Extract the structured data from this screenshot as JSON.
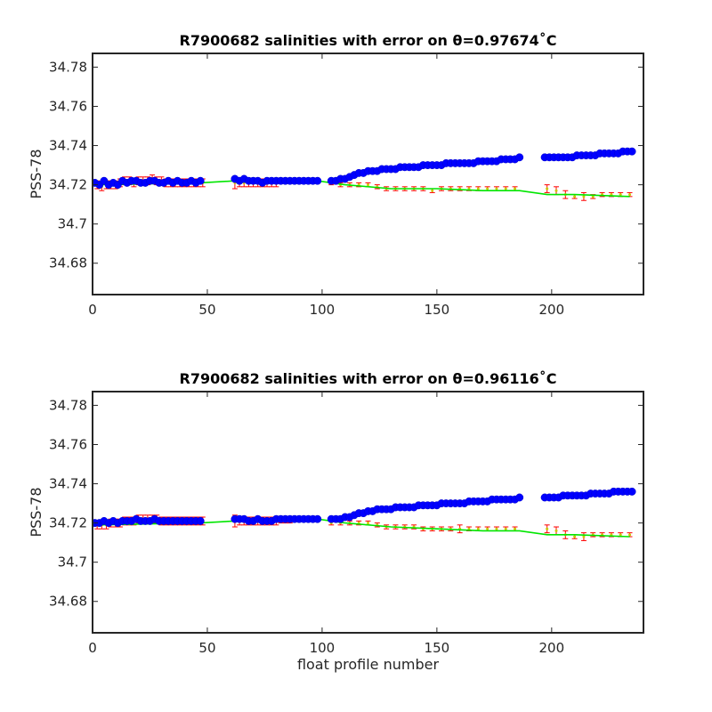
{
  "chart_data": [
    {
      "type": "scatter",
      "title": "R7900682 salinities with error on θ=0.97674˚C",
      "xlabel": "",
      "ylabel": "PSS-78",
      "xlim": [
        0,
        240
      ],
      "ylim": [
        34.664,
        34.787
      ],
      "x_ticks": [
        0,
        50,
        100,
        150,
        200
      ],
      "x_tick_labels": [
        "0",
        "50",
        "100",
        "150",
        "200"
      ],
      "y_ticks": [
        34.68,
        34.7,
        34.72,
        34.74,
        34.76,
        34.78
      ],
      "y_tick_labels": [
        "34.68",
        "34.7",
        "34.72",
        "34.74",
        "34.76",
        "34.78"
      ],
      "grid": false,
      "colors": {
        "float": "#0000ff",
        "mapped": "#ff0000",
        "fit": "#00e600",
        "errorbar": "#ff0000"
      },
      "series": [
        {
          "kind": "points",
          "color": "#0000ff",
          "x": [
            1,
            3,
            5,
            7,
            9,
            11,
            13,
            15,
            17,
            19,
            21,
            23,
            25,
            27,
            29,
            31,
            33,
            35,
            37,
            39,
            41,
            43,
            45,
            47,
            62,
            64,
            66,
            68,
            70,
            72,
            74,
            76,
            78,
            80,
            82,
            84,
            86,
            88,
            90,
            92,
            94,
            96,
            98,
            104,
            106,
            108,
            110,
            112,
            114,
            116,
            118,
            120,
            122,
            124,
            126,
            128,
            130,
            132,
            134,
            136,
            138,
            140,
            142,
            144,
            146,
            148,
            150,
            152,
            154,
            156,
            158,
            160,
            162,
            164,
            166,
            168,
            170,
            172,
            174,
            176,
            178,
            180,
            182,
            184,
            186,
            197,
            199,
            201,
            203,
            205,
            207,
            209,
            211,
            213,
            215,
            217,
            219,
            221,
            223,
            225,
            227,
            229,
            231,
            233,
            235
          ],
          "y": [
            34.721,
            34.72,
            34.722,
            34.72,
            34.721,
            34.72,
            34.722,
            34.721,
            34.722,
            34.722,
            34.721,
            34.721,
            34.722,
            34.722,
            34.721,
            34.721,
            34.722,
            34.721,
            34.722,
            34.721,
            34.721,
            34.722,
            34.721,
            34.722,
            34.723,
            34.722,
            34.723,
            34.722,
            34.722,
            34.722,
            34.721,
            34.722,
            34.722,
            34.722,
            34.722,
            34.722,
            34.722,
            34.722,
            34.722,
            34.722,
            34.722,
            34.722,
            34.722,
            34.722,
            34.722,
            34.723,
            34.723,
            34.724,
            34.725,
            34.726,
            34.726,
            34.727,
            34.727,
            34.727,
            34.728,
            34.728,
            34.728,
            34.728,
            34.729,
            34.729,
            34.729,
            34.729,
            34.729,
            34.73,
            34.73,
            34.73,
            34.73,
            34.73,
            34.731,
            34.731,
            34.731,
            34.731,
            34.731,
            34.731,
            34.731,
            34.732,
            34.732,
            34.732,
            34.732,
            34.732,
            34.733,
            34.733,
            34.733,
            34.733,
            34.734,
            34.734,
            34.734,
            34.734,
            34.734,
            34.734,
            34.734,
            34.734,
            34.735,
            34.735,
            34.735,
            34.735,
            34.735,
            34.736,
            34.736,
            34.736,
            34.736,
            34.736,
            34.737,
            34.737,
            34.737
          ]
        },
        {
          "kind": "errorbars",
          "color": "#ff0000",
          "x": [
            2,
            4,
            6,
            8,
            10,
            12,
            14,
            16,
            18,
            20,
            22,
            24,
            26,
            28,
            30,
            32,
            34,
            36,
            38,
            40,
            42,
            44,
            46,
            48,
            62,
            64,
            66,
            68,
            70,
            72,
            74,
            76,
            78,
            80,
            82,
            84,
            86,
            88,
            90,
            92,
            94,
            96,
            98,
            104,
            108,
            112,
            116,
            120,
            124,
            128,
            132,
            136,
            140,
            144,
            148,
            152,
            156,
            160,
            164,
            168,
            172,
            176,
            180,
            184,
            198,
            202,
            206,
            210,
            214,
            218,
            222,
            226,
            230,
            234
          ],
          "y": [
            34.72,
            34.719,
            34.72,
            34.72,
            34.72,
            34.721,
            34.722,
            34.722,
            34.721,
            34.722,
            34.722,
            34.722,
            34.723,
            34.722,
            34.722,
            34.721,
            34.721,
            34.721,
            34.721,
            34.721,
            34.721,
            34.721,
            34.721,
            34.721,
            34.721,
            34.721,
            34.721,
            34.721,
            34.721,
            34.721,
            34.721,
            34.721,
            34.721,
            34.721,
            34.722,
            34.722,
            34.722,
            34.722,
            34.722,
            34.722,
            34.722,
            34.722,
            34.722,
            34.721,
            34.72,
            34.72,
            34.72,
            34.72,
            34.719,
            34.718,
            34.718,
            34.718,
            34.718,
            34.718,
            34.717,
            34.718,
            34.718,
            34.718,
            34.718,
            34.718,
            34.718,
            34.718,
            34.718,
            34.718,
            34.718,
            34.717,
            34.715,
            34.714,
            34.714,
            34.714,
            34.715,
            34.715,
            34.715,
            34.715
          ],
          "err": [
            0.002,
            0.002,
            0.002,
            0.002,
            0.002,
            0.002,
            0.002,
            0.002,
            0.002,
            0.002,
            0.002,
            0.002,
            0.002,
            0.002,
            0.002,
            0.002,
            0.002,
            0.002,
            0.002,
            0.002,
            0.002,
            0.002,
            0.002,
            0.002,
            0.003,
            0.002,
            0.002,
            0.002,
            0.002,
            0.002,
            0.002,
            0.002,
            0.002,
            0.002,
            0.001,
            0.001,
            0.001,
            0.001,
            0.001,
            0.001,
            0.001,
            0.001,
            0.001,
            0.001,
            0.001,
            0.001,
            0.001,
            0.001,
            0.001,
            0.001,
            0.001,
            0.001,
            0.001,
            0.001,
            0.001,
            0.001,
            0.001,
            0.001,
            0.001,
            0.001,
            0.001,
            0.001,
            0.001,
            0.001,
            0.002,
            0.002,
            0.002,
            0.001,
            0.002,
            0.001,
            0.001,
            0.001,
            0.001,
            0.001
          ]
        },
        {
          "kind": "line",
          "color": "#00e600",
          "x": [
            2,
            47,
            62,
            98,
            110,
            130,
            150,
            170,
            186,
            198,
            210,
            234
          ],
          "y": [
            34.72,
            34.721,
            34.722,
            34.722,
            34.72,
            34.718,
            34.718,
            34.717,
            34.717,
            34.715,
            34.715,
            34.714
          ]
        }
      ]
    },
    {
      "type": "scatter",
      "title": "R7900682 salinities with error on θ=0.96116˚C",
      "xlabel": "float profile number",
      "ylabel": "PSS-78",
      "xlim": [
        0,
        240
      ],
      "ylim": [
        34.664,
        34.787
      ],
      "x_ticks": [
        0,
        50,
        100,
        150,
        200
      ],
      "x_tick_labels": [
        "0",
        "50",
        "100",
        "150",
        "200"
      ],
      "y_ticks": [
        34.68,
        34.7,
        34.72,
        34.74,
        34.76,
        34.78
      ],
      "y_tick_labels": [
        "34.68",
        "34.7",
        "34.72",
        "34.74",
        "34.76",
        "34.78"
      ],
      "grid": false,
      "colors": {
        "float": "#0000ff",
        "mapped": "#ff0000",
        "fit": "#00e600",
        "errorbar": "#ff0000"
      },
      "series": [
        {
          "kind": "points",
          "color": "#0000ff",
          "x": [
            1,
            3,
            5,
            7,
            9,
            11,
            13,
            15,
            17,
            19,
            21,
            23,
            25,
            27,
            29,
            31,
            33,
            35,
            37,
            39,
            41,
            43,
            45,
            47,
            62,
            64,
            66,
            68,
            70,
            72,
            74,
            76,
            78,
            80,
            82,
            84,
            86,
            88,
            90,
            92,
            94,
            96,
            98,
            104,
            106,
            108,
            110,
            112,
            114,
            116,
            118,
            120,
            122,
            124,
            126,
            128,
            130,
            132,
            134,
            136,
            138,
            140,
            142,
            144,
            146,
            148,
            150,
            152,
            154,
            156,
            158,
            160,
            162,
            164,
            166,
            168,
            170,
            172,
            174,
            176,
            178,
            180,
            182,
            184,
            186,
            197,
            199,
            201,
            203,
            205,
            207,
            209,
            211,
            213,
            215,
            217,
            219,
            221,
            223,
            225,
            227,
            229,
            231,
            233,
            235
          ],
          "y": [
            34.72,
            34.72,
            34.721,
            34.72,
            34.721,
            34.72,
            34.721,
            34.721,
            34.721,
            34.722,
            34.721,
            34.721,
            34.721,
            34.722,
            34.721,
            34.721,
            34.721,
            34.721,
            34.721,
            34.721,
            34.721,
            34.721,
            34.721,
            34.721,
            34.722,
            34.722,
            34.722,
            34.721,
            34.721,
            34.722,
            34.721,
            34.721,
            34.721,
            34.722,
            34.722,
            34.722,
            34.722,
            34.722,
            34.722,
            34.722,
            34.722,
            34.722,
            34.722,
            34.722,
            34.722,
            34.722,
            34.723,
            34.723,
            34.724,
            34.725,
            34.725,
            34.726,
            34.726,
            34.727,
            34.727,
            34.727,
            34.727,
            34.728,
            34.728,
            34.728,
            34.728,
            34.728,
            34.729,
            34.729,
            34.729,
            34.729,
            34.729,
            34.73,
            34.73,
            34.73,
            34.73,
            34.73,
            34.73,
            34.731,
            34.731,
            34.731,
            34.731,
            34.731,
            34.732,
            34.732,
            34.732,
            34.732,
            34.732,
            34.732,
            34.733,
            34.733,
            34.733,
            34.733,
            34.733,
            34.734,
            34.734,
            34.734,
            34.734,
            34.734,
            34.734,
            34.735,
            34.735,
            34.735,
            34.735,
            34.735,
            34.736,
            34.736,
            34.736,
            34.736,
            34.736
          ],
          "note_hidden": ""
        },
        {
          "kind": "errorbars",
          "color": "#ff0000",
          "x": [
            2,
            4,
            6,
            8,
            10,
            12,
            14,
            16,
            18,
            20,
            22,
            24,
            26,
            28,
            30,
            32,
            34,
            36,
            38,
            40,
            42,
            44,
            46,
            48,
            62,
            64,
            66,
            68,
            70,
            72,
            74,
            76,
            78,
            80,
            82,
            84,
            86,
            88,
            90,
            92,
            94,
            96,
            98,
            104,
            108,
            112,
            116,
            120,
            124,
            128,
            132,
            136,
            140,
            144,
            148,
            152,
            156,
            160,
            164,
            168,
            172,
            176,
            180,
            184,
            198,
            202,
            206,
            210,
            214,
            218,
            222,
            226,
            230,
            234
          ],
          "y": [
            34.719,
            34.719,
            34.719,
            34.72,
            34.72,
            34.72,
            34.721,
            34.721,
            34.721,
            34.722,
            34.722,
            34.722,
            34.722,
            34.722,
            34.721,
            34.721,
            34.721,
            34.721,
            34.721,
            34.721,
            34.721,
            34.721,
            34.721,
            34.721,
            34.721,
            34.721,
            34.721,
            34.721,
            34.721,
            34.721,
            34.721,
            34.721,
            34.721,
            34.721,
            34.721,
            34.721,
            34.721,
            34.722,
            34.722,
            34.722,
            34.722,
            34.722,
            34.722,
            34.72,
            34.72,
            34.72,
            34.72,
            34.72,
            34.719,
            34.718,
            34.718,
            34.718,
            34.718,
            34.717,
            34.717,
            34.717,
            34.717,
            34.717,
            34.717,
            34.717,
            34.717,
            34.717,
            34.717,
            34.717,
            34.717,
            34.716,
            34.714,
            34.713,
            34.713,
            34.714,
            34.714,
            34.714,
            34.714,
            34.714
          ],
          "err": [
            0.002,
            0.002,
            0.002,
            0.002,
            0.002,
            0.002,
            0.002,
            0.002,
            0.002,
            0.002,
            0.002,
            0.002,
            0.002,
            0.002,
            0.002,
            0.002,
            0.002,
            0.002,
            0.002,
            0.002,
            0.002,
            0.002,
            0.002,
            0.002,
            0.003,
            0.002,
            0.002,
            0.002,
            0.002,
            0.002,
            0.002,
            0.002,
            0.002,
            0.002,
            0.001,
            0.001,
            0.001,
            0.001,
            0.001,
            0.001,
            0.001,
            0.001,
            0.001,
            0.001,
            0.001,
            0.001,
            0.001,
            0.001,
            0.001,
            0.001,
            0.001,
            0.001,
            0.001,
            0.001,
            0.001,
            0.001,
            0.001,
            0.002,
            0.001,
            0.001,
            0.001,
            0.001,
            0.001,
            0.001,
            0.002,
            0.002,
            0.002,
            0.001,
            0.002,
            0.001,
            0.001,
            0.001,
            0.001,
            0.001
          ]
        },
        {
          "kind": "line",
          "color": "#00e600",
          "x": [
            2,
            47,
            62,
            98,
            110,
            130,
            150,
            170,
            186,
            198,
            210,
            234
          ],
          "y": [
            34.719,
            34.72,
            34.721,
            34.722,
            34.72,
            34.718,
            34.717,
            34.716,
            34.716,
            34.714,
            34.714,
            34.713
          ]
        }
      ]
    }
  ]
}
